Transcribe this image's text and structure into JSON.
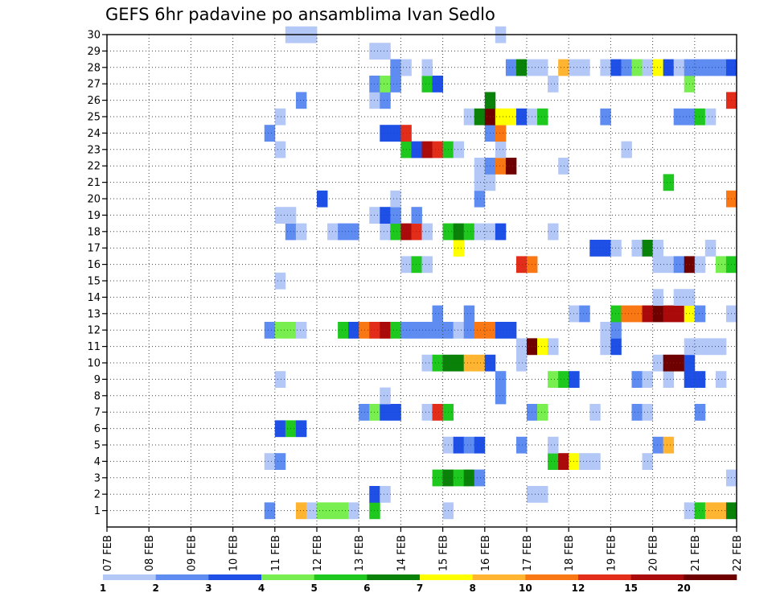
{
  "chart_data": {
    "type": "heatmap",
    "title": "GEFS 6hr padavine po ansamblima Ivan Sedlo",
    "x_tick_labels": [
      "07 FEB",
      "08 FEB",
      "09 FEB",
      "10 FEB",
      "11 FEB",
      "12 FEB",
      "13 FEB",
      "14 FEB",
      "15 FEB",
      "16 FEB",
      "17 FEB",
      "18 FEB",
      "19 FEB",
      "20 FEB",
      "21 FEB",
      "22 FEB"
    ],
    "y_tick_labels": [
      "1",
      "2",
      "3",
      "4",
      "5",
      "6",
      "7",
      "8",
      "9",
      "10",
      "11",
      "12",
      "13",
      "14",
      "15",
      "16",
      "17",
      "18",
      "19",
      "20",
      "21",
      "22",
      "23",
      "24",
      "25",
      "26",
      "27",
      "28",
      "29",
      "30"
    ],
    "xlim_steps": [
      0,
      60
    ],
    "ylim": [
      0,
      30
    ],
    "steps_per_day": 4,
    "grid": true,
    "colorbar": {
      "labels": [
        "1",
        "2",
        "3",
        "4",
        "5",
        "6",
        "7",
        "8",
        "10",
        "12",
        "15",
        "20"
      ],
      "colors": [
        "#b4c8f8",
        "#5f8cf0",
        "#1e50e6",
        "#78ee50",
        "#1ec81e",
        "#0a820a",
        "#ffff00",
        "#ffb432",
        "#fa7814",
        "#e12d19",
        "#aa0a0a",
        "#6e0000"
      ]
    },
    "cells": [
      [
        15,
        1,
        2
      ],
      [
        18,
        1,
        8
      ],
      [
        19,
        1,
        1
      ],
      [
        20,
        1,
        4
      ],
      [
        21,
        1,
        4
      ],
      [
        22,
        1,
        4
      ],
      [
        23,
        1,
        1
      ],
      [
        25,
        1,
        5
      ],
      [
        32,
        1,
        1
      ],
      [
        55,
        1,
        1
      ],
      [
        56,
        1,
        5
      ],
      [
        57,
        1,
        8
      ],
      [
        58,
        1,
        8
      ],
      [
        59,
        1,
        6
      ],
      [
        25,
        2,
        3
      ],
      [
        26,
        2,
        1
      ],
      [
        40,
        2,
        1
      ],
      [
        41,
        2,
        1
      ],
      [
        31,
        3,
        5
      ],
      [
        32,
        3,
        6
      ],
      [
        33,
        3,
        5
      ],
      [
        34,
        3,
        6
      ],
      [
        35,
        3,
        2
      ],
      [
        59,
        3,
        1
      ],
      [
        15,
        4,
        1
      ],
      [
        16,
        4,
        2
      ],
      [
        42,
        4,
        5
      ],
      [
        43,
        4,
        11
      ],
      [
        44,
        4,
        7
      ],
      [
        45,
        4,
        1
      ],
      [
        46,
        4,
        1
      ],
      [
        51,
        4,
        1
      ],
      [
        32,
        5,
        1
      ],
      [
        33,
        5,
        3
      ],
      [
        34,
        5,
        2
      ],
      [
        35,
        5,
        3
      ],
      [
        39,
        5,
        2
      ],
      [
        42,
        5,
        1
      ],
      [
        52,
        5,
        2
      ],
      [
        53,
        5,
        8
      ],
      [
        16,
        6,
        3
      ],
      [
        17,
        6,
        5
      ],
      [
        18,
        6,
        3
      ],
      [
        24,
        7,
        2
      ],
      [
        25,
        7,
        4
      ],
      [
        26,
        7,
        3
      ],
      [
        27,
        7,
        3
      ],
      [
        30,
        7,
        1
      ],
      [
        31,
        7,
        10
      ],
      [
        32,
        7,
        5
      ],
      [
        40,
        7,
        2
      ],
      [
        41,
        7,
        4
      ],
      [
        46,
        7,
        1
      ],
      [
        50,
        7,
        2
      ],
      [
        51,
        7,
        1
      ],
      [
        56,
        7,
        2
      ],
      [
        26,
        8,
        1
      ],
      [
        37,
        8,
        2
      ],
      [
        16,
        9,
        1
      ],
      [
        37,
        9,
        2
      ],
      [
        42,
        9,
        4
      ],
      [
        43,
        9,
        5
      ],
      [
        44,
        9,
        3
      ],
      [
        50,
        9,
        2
      ],
      [
        51,
        9,
        1
      ],
      [
        53,
        9,
        1
      ],
      [
        55,
        9,
        3
      ],
      [
        56,
        9,
        3
      ],
      [
        58,
        9,
        1
      ],
      [
        30,
        10,
        1
      ],
      [
        31,
        10,
        5
      ],
      [
        32,
        10,
        6
      ],
      [
        33,
        10,
        6
      ],
      [
        34,
        10,
        8
      ],
      [
        35,
        10,
        8
      ],
      [
        36,
        10,
        3
      ],
      [
        39,
        10,
        1
      ],
      [
        52,
        10,
        1
      ],
      [
        53,
        10,
        12
      ],
      [
        54,
        10,
        12
      ],
      [
        55,
        10,
        3
      ],
      [
        39,
        11,
        1
      ],
      [
        40,
        11,
        12
      ],
      [
        41,
        11,
        7
      ],
      [
        42,
        11,
        1
      ],
      [
        47,
        11,
        1
      ],
      [
        48,
        11,
        3
      ],
      [
        55,
        11,
        1
      ],
      [
        56,
        11,
        1
      ],
      [
        57,
        11,
        1
      ],
      [
        58,
        11,
        1
      ],
      [
        15,
        12,
        2
      ],
      [
        16,
        12,
        4
      ],
      [
        17,
        12,
        4
      ],
      [
        18,
        12,
        1
      ],
      [
        22,
        12,
        5
      ],
      [
        23,
        12,
        3
      ],
      [
        24,
        12,
        9
      ],
      [
        25,
        12,
        10
      ],
      [
        26,
        12,
        11
      ],
      [
        27,
        12,
        5
      ],
      [
        28,
        12,
        2
      ],
      [
        29,
        12,
        2
      ],
      [
        30,
        12,
        2
      ],
      [
        31,
        12,
        2
      ],
      [
        32,
        12,
        2
      ],
      [
        33,
        12,
        1
      ],
      [
        34,
        12,
        2
      ],
      [
        35,
        12,
        9
      ],
      [
        36,
        12,
        9
      ],
      [
        37,
        12,
        3
      ],
      [
        38,
        12,
        3
      ],
      [
        47,
        12,
        1
      ],
      [
        48,
        12,
        2
      ],
      [
        31,
        13,
        2
      ],
      [
        34,
        13,
        2
      ],
      [
        44,
        13,
        1
      ],
      [
        45,
        13,
        2
      ],
      [
        48,
        13,
        5
      ],
      [
        49,
        13,
        9
      ],
      [
        50,
        13,
        9
      ],
      [
        51,
        13,
        11
      ],
      [
        52,
        13,
        12
      ],
      [
        53,
        13,
        11
      ],
      [
        54,
        13,
        11
      ],
      [
        55,
        13,
        7
      ],
      [
        56,
        13,
        2
      ],
      [
        59,
        13,
        1
      ],
      [
        52,
        14,
        1
      ],
      [
        54,
        14,
        1
      ],
      [
        55,
        14,
        1
      ],
      [
        16,
        15,
        1
      ],
      [
        28,
        16,
        1
      ],
      [
        29,
        16,
        5
      ],
      [
        30,
        16,
        1
      ],
      [
        39,
        16,
        10
      ],
      [
        40,
        16,
        9
      ],
      [
        52,
        16,
        1
      ],
      [
        53,
        16,
        1
      ],
      [
        54,
        16,
        2
      ],
      [
        55,
        16,
        12
      ],
      [
        56,
        16,
        1
      ],
      [
        58,
        16,
        4
      ],
      [
        59,
        16,
        5
      ],
      [
        46,
        17,
        3
      ],
      [
        47,
        17,
        3
      ],
      [
        48,
        17,
        1
      ],
      [
        50,
        17,
        1
      ],
      [
        51,
        17,
        6
      ],
      [
        52,
        17,
        1
      ],
      [
        57,
        17,
        1
      ],
      [
        33,
        17,
        7
      ],
      [
        17,
        18,
        2
      ],
      [
        18,
        18,
        1
      ],
      [
        21,
        18,
        1
      ],
      [
        22,
        18,
        2
      ],
      [
        23,
        18,
        2
      ],
      [
        26,
        18,
        1
      ],
      [
        27,
        18,
        5
      ],
      [
        28,
        18,
        11
      ],
      [
        29,
        18,
        10
      ],
      [
        30,
        18,
        1
      ],
      [
        32,
        18,
        5
      ],
      [
        33,
        18,
        6
      ],
      [
        34,
        18,
        5
      ],
      [
        35,
        18,
        1
      ],
      [
        36,
        18,
        1
      ],
      [
        37,
        18,
        3
      ],
      [
        42,
        18,
        1
      ],
      [
        16,
        19,
        1
      ],
      [
        17,
        19,
        1
      ],
      [
        25,
        19,
        1
      ],
      [
        26,
        19,
        3
      ],
      [
        27,
        19,
        2
      ],
      [
        29,
        19,
        2
      ],
      [
        20,
        20,
        3
      ],
      [
        27,
        20,
        1
      ],
      [
        35,
        20,
        2
      ],
      [
        59,
        20,
        9
      ],
      [
        35,
        21,
        1
      ],
      [
        36,
        21,
        1
      ],
      [
        53,
        21,
        5
      ],
      [
        35,
        22,
        1
      ],
      [
        36,
        22,
        2
      ],
      [
        37,
        22,
        9
      ],
      [
        38,
        22,
        12
      ],
      [
        43,
        22,
        1
      ],
      [
        16,
        23,
        1
      ],
      [
        28,
        23,
        5
      ],
      [
        29,
        23,
        3
      ],
      [
        30,
        23,
        11
      ],
      [
        31,
        23,
        10
      ],
      [
        32,
        23,
        5
      ],
      [
        33,
        23,
        1
      ],
      [
        37,
        23,
        1
      ],
      [
        49,
        23,
        1
      ],
      [
        15,
        24,
        2
      ],
      [
        26,
        24,
        3
      ],
      [
        27,
        24,
        3
      ],
      [
        28,
        24,
        10
      ],
      [
        36,
        24,
        2
      ],
      [
        37,
        24,
        9
      ],
      [
        16,
        25,
        1
      ],
      [
        34,
        25,
        1
      ],
      [
        35,
        25,
        6
      ],
      [
        36,
        25,
        12
      ],
      [
        37,
        25,
        7
      ],
      [
        38,
        25,
        7
      ],
      [
        39,
        25,
        3
      ],
      [
        40,
        25,
        1
      ],
      [
        41,
        25,
        5
      ],
      [
        47,
        25,
        2
      ],
      [
        54,
        25,
        2
      ],
      [
        55,
        25,
        2
      ],
      [
        56,
        25,
        5
      ],
      [
        57,
        25,
        1
      ],
      [
        18,
        26,
        2
      ],
      [
        25,
        26,
        1
      ],
      [
        26,
        26,
        2
      ],
      [
        36,
        26,
        6
      ],
      [
        59,
        26,
        10
      ],
      [
        25,
        27,
        2
      ],
      [
        26,
        27,
        4
      ],
      [
        27,
        27,
        2
      ],
      [
        30,
        27,
        5
      ],
      [
        31,
        27,
        3
      ],
      [
        42,
        27,
        1
      ],
      [
        55,
        27,
        4
      ],
      [
        27,
        28,
        2
      ],
      [
        28,
        28,
        1
      ],
      [
        30,
        28,
        1
      ],
      [
        38,
        28,
        2
      ],
      [
        39,
        28,
        6
      ],
      [
        40,
        28,
        1
      ],
      [
        41,
        28,
        1
      ],
      [
        43,
        28,
        8
      ],
      [
        44,
        28,
        1
      ],
      [
        45,
        28,
        1
      ],
      [
        47,
        28,
        1
      ],
      [
        48,
        28,
        3
      ],
      [
        49,
        28,
        2
      ],
      [
        50,
        28,
        4
      ],
      [
        51,
        28,
        1
      ],
      [
        52,
        28,
        7
      ],
      [
        53,
        28,
        3
      ],
      [
        54,
        28,
        1
      ],
      [
        55,
        28,
        2
      ],
      [
        56,
        28,
        2
      ],
      [
        57,
        28,
        2
      ],
      [
        58,
        28,
        2
      ],
      [
        59,
        28,
        3
      ],
      [
        25,
        29,
        1
      ],
      [
        26,
        29,
        1
      ],
      [
        17,
        30,
        1
      ],
      [
        18,
        30,
        1
      ],
      [
        19,
        30,
        1
      ],
      [
        37,
        30,
        1
      ]
    ]
  }
}
